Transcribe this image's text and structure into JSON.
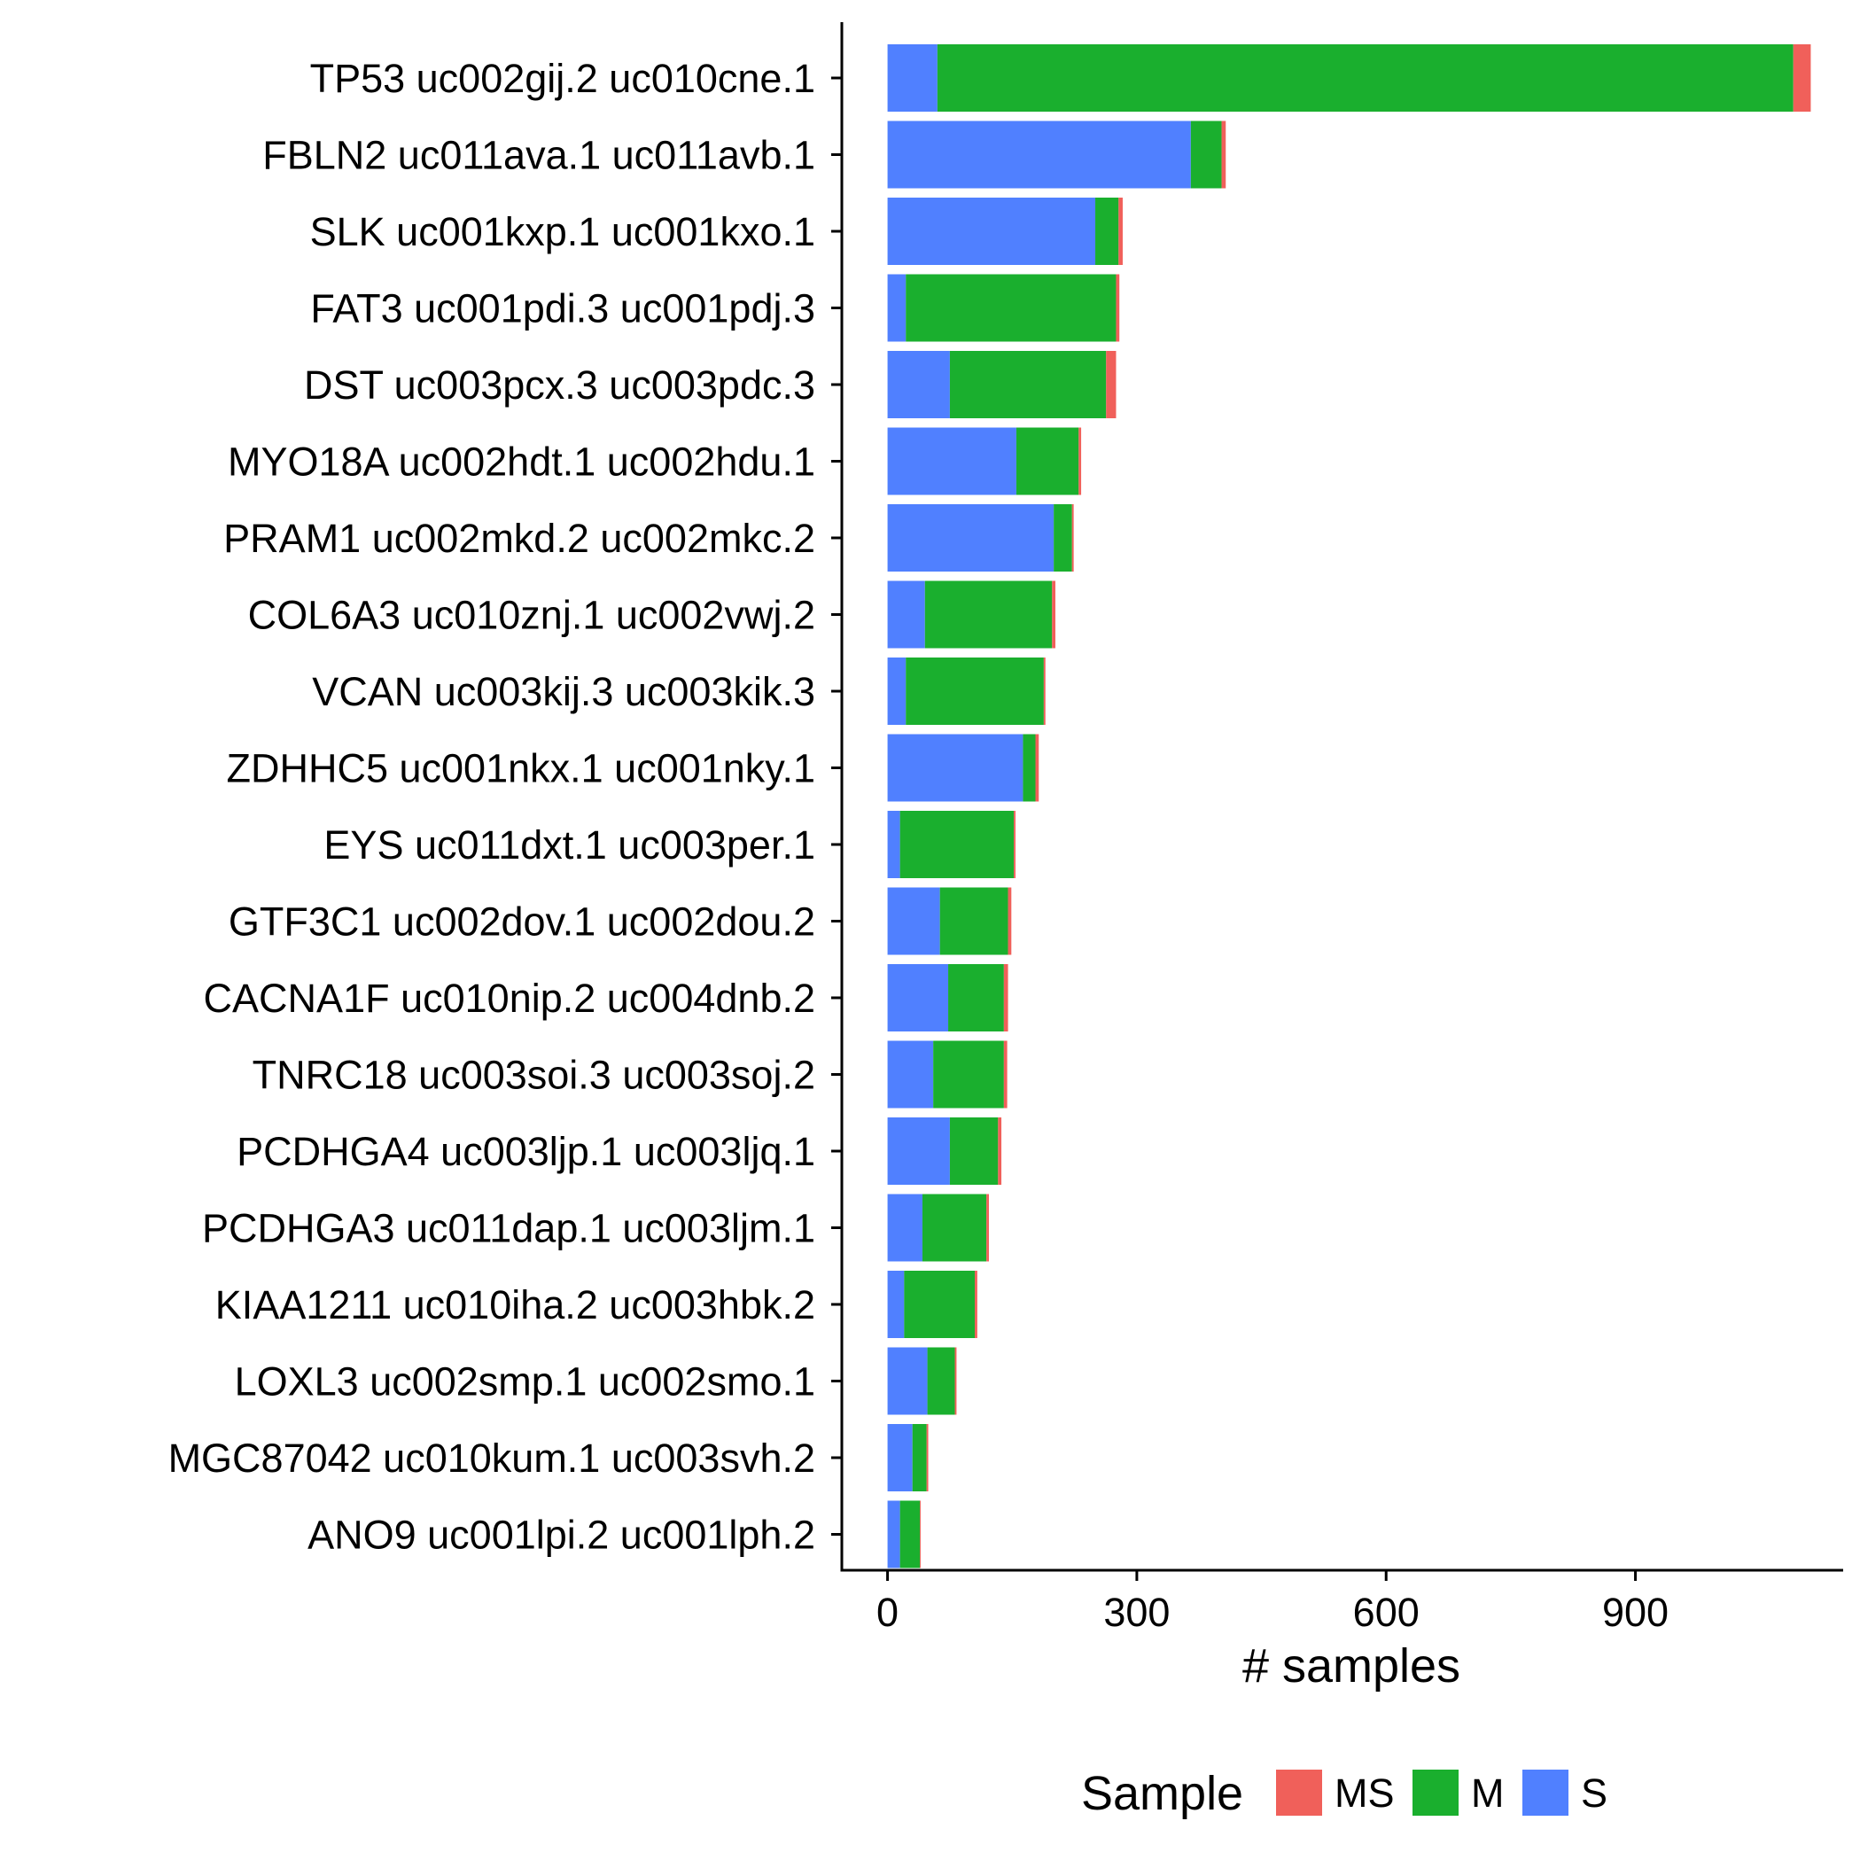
{
  "chart_data": {
    "type": "bar",
    "orientation": "horizontal",
    "stacked": true,
    "categories": [
      "TP53 uc002gij.2 uc010cne.1",
      "FBLN2 uc011ava.1 uc011avb.1",
      "SLK uc001kxp.1 uc001kxo.1",
      "FAT3 uc001pdi.3 uc001pdj.3",
      "DST uc003pcx.3 uc003pdc.3",
      "MYO18A uc002hdt.1 uc002hdu.1",
      "PRAM1 uc002mkd.2 uc002mkc.2",
      "COL6A3 uc010znj.1 uc002vwj.2",
      "VCAN uc003kij.3 uc003kik.3",
      "ZDHHC5 uc001nkx.1 uc001nky.1",
      "EYS uc011dxt.1 uc003per.1",
      "GTF3C1 uc002dov.1 uc002dou.2",
      "CACNA1F uc010nip.2 uc004dnb.2",
      "TNRC18 uc003soi.3 uc003soj.2",
      "PCDHGA4 uc003ljp.1 uc003ljq.1",
      "PCDHGA3 uc011dap.1 uc003ljm.1",
      "KIAA1211 uc010iha.2 uc003hbk.2",
      "LOXL3 uc002smp.1 uc002smo.1",
      "MGC87042 uc010kum.1 uc003svh.2",
      "ANO9 uc001lpi.2 uc001lph.2"
    ],
    "series": [
      {
        "name": "S",
        "color": "#5080FF",
        "values": [
          60,
          365,
          250,
          22,
          75,
          155,
          200,
          45,
          22,
          163,
          15,
          63,
          73,
          55,
          75,
          42,
          20,
          48,
          30,
          15
        ]
      },
      {
        "name": "M",
        "color": "#1AAF2E",
        "values": [
          1030,
          37,
          28,
          253,
          188,
          75,
          22,
          153,
          166,
          15,
          137,
          82,
          67,
          85,
          58,
          77,
          85,
          33,
          17,
          24
        ]
      },
      {
        "name": "MS",
        "color": "#F0605A",
        "values": [
          21,
          5,
          5,
          4,
          12,
          3,
          2,
          4,
          2,
          4,
          2,
          4,
          5,
          4,
          4,
          3,
          3,
          2,
          2,
          1
        ]
      }
    ],
    "xlabel": "# samples",
    "ylabel": "",
    "xlim": [
      -55,
      1150
    ],
    "xticks": [
      0,
      300,
      600,
      900
    ],
    "grid": false,
    "legend": {
      "title": "Sample",
      "position": "bottom",
      "order": [
        "MS",
        "M",
        "S"
      ]
    }
  }
}
